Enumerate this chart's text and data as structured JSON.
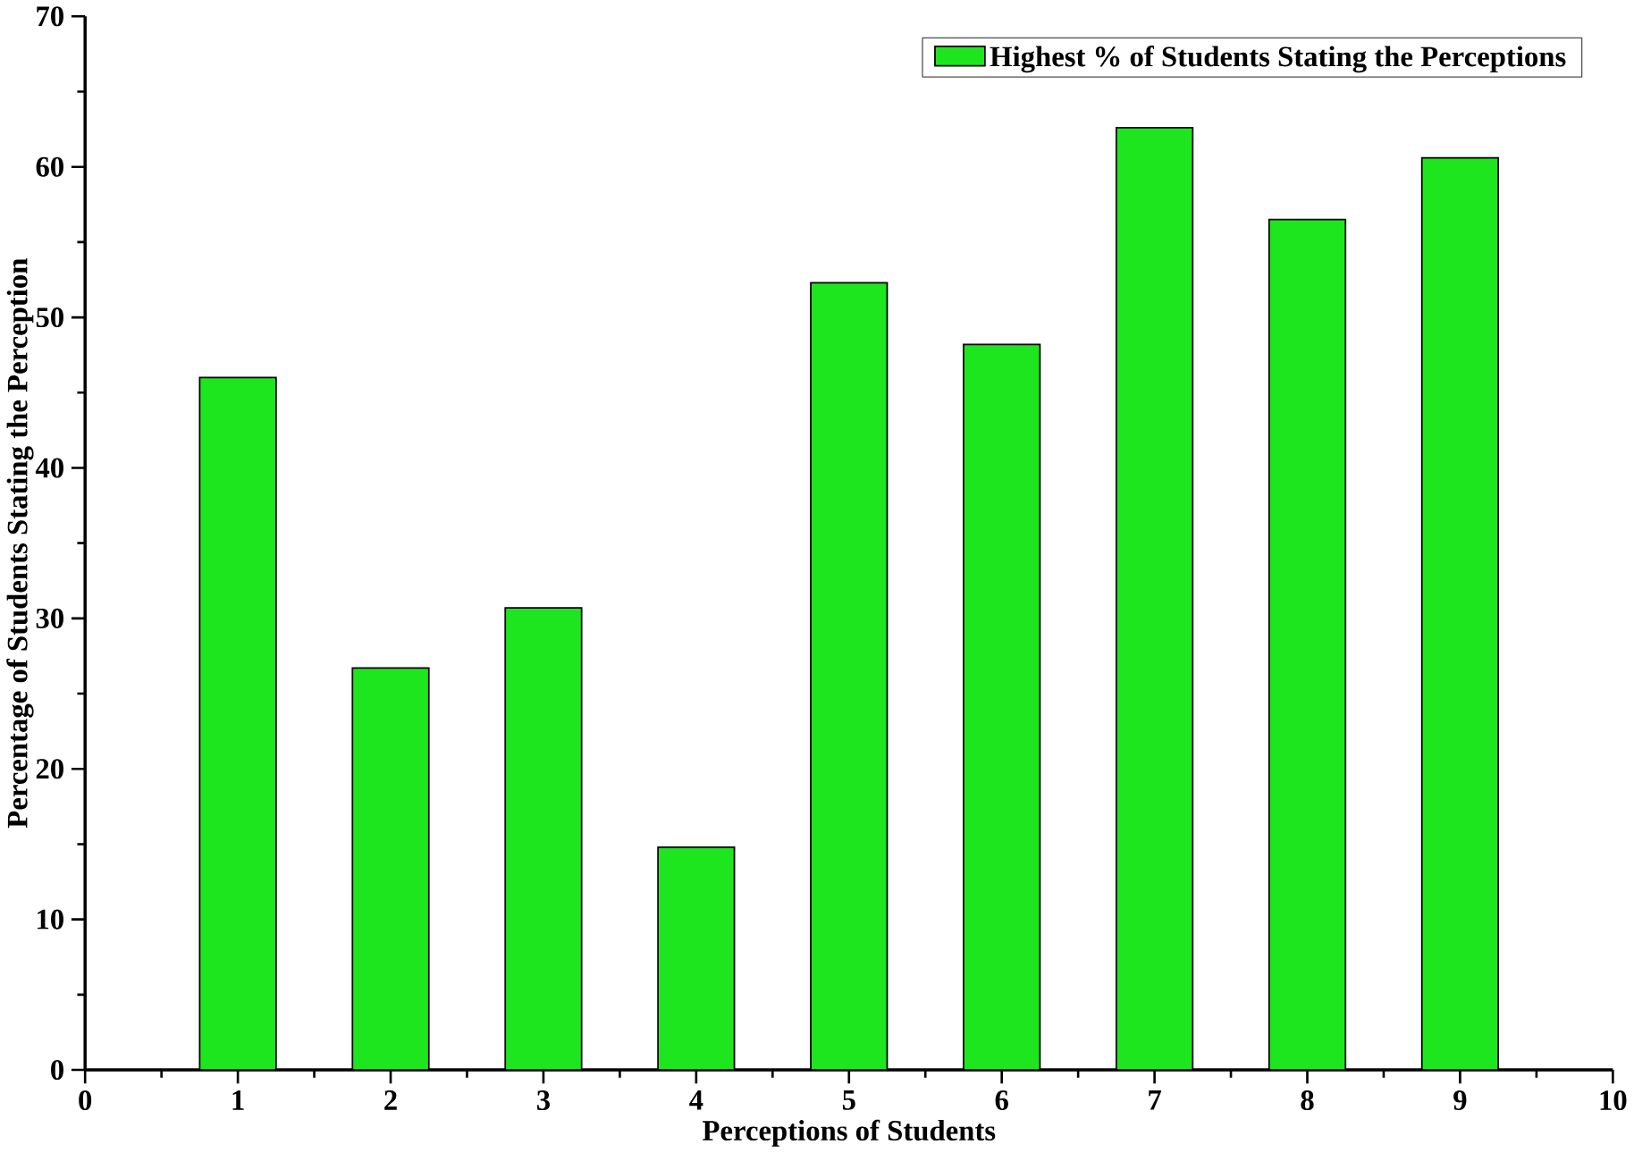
{
  "chart_data": {
    "type": "bar",
    "xlabel": "Perceptions of Students",
    "ylabel": "Percentage of Students Stating the Perception",
    "x": [
      1,
      2,
      3,
      4,
      5,
      6,
      7,
      8,
      9
    ],
    "series": [
      {
        "name": "Highest % of  Students Stating the Perceptions",
        "color": "#1ee61e",
        "values": [
          46.0,
          26.7,
          30.7,
          14.8,
          52.3,
          48.2,
          62.6,
          56.5,
          60.6
        ]
      }
    ],
    "xlim": [
      0,
      10
    ],
    "xticks": [
      0,
      1,
      2,
      3,
      4,
      5,
      6,
      7,
      8,
      9,
      10
    ],
    "ylim": [
      0,
      70
    ],
    "yticks": [
      0,
      10,
      20,
      30,
      40,
      50,
      60,
      70
    ],
    "grid": false,
    "legend": "top right"
  }
}
